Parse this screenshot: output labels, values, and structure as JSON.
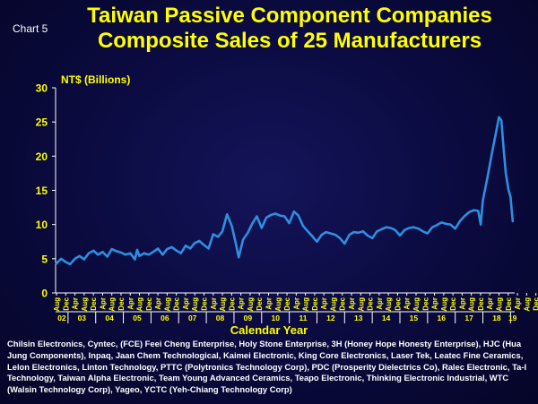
{
  "header": {
    "chart_number": "Chart 5"
  },
  "chart_data": {
    "type": "line",
    "title": "Taiwan Passive Component Companies",
    "subtitle": "Composite Sales of 25 Manufacturers",
    "ylabel": "NT$ (Billions)",
    "xlabel": "Calendar Year",
    "ylim": [
      0,
      30
    ],
    "yticks": [
      "0",
      "5",
      "10",
      "15",
      "20",
      "25",
      "30"
    ],
    "grid": false,
    "color": "#2e8fe0",
    "month_ticks": [
      "Aug",
      "Dec",
      "Apr",
      "Aug",
      "Dec",
      "Apr",
      "Aug",
      "Dec",
      "Apr",
      "Aug",
      "Dec",
      "Apr",
      "Aug",
      "Dec",
      "Apr",
      "Aug",
      "Dec",
      "Apr",
      "Aug",
      "Dec",
      "Apr",
      "Aug",
      "Dec",
      "Apr",
      "Aug",
      "Dec",
      "Apr",
      "Aug",
      "Dec",
      "Apr",
      "Aug",
      "Dec",
      "Apr",
      "Aug",
      "Dec",
      "Apr",
      "Aug",
      "Dec",
      "Apr",
      "Aug",
      "Dec",
      "Apr",
      "Aug",
      "Dec",
      "Apr",
      "Aug",
      "Dec",
      "Apr",
      "Aug",
      "Dec",
      "Apr",
      "Aug",
      "Dec"
    ],
    "year_labels": [
      "02",
      "03",
      "04",
      "05",
      "06",
      "07",
      "08",
      "09",
      "10",
      "11",
      "12",
      "13",
      "14",
      "15",
      "16",
      "17",
      "18",
      "19"
    ],
    "x_start": "Aug 2002",
    "x_end": "Jan 2019",
    "points": [
      [
        2002.58,
        4.3
      ],
      [
        2002.75,
        5.0
      ],
      [
        2002.92,
        4.5
      ],
      [
        2003.08,
        4.2
      ],
      [
        2003.25,
        5.0
      ],
      [
        2003.42,
        5.4
      ],
      [
        2003.58,
        4.9
      ],
      [
        2003.75,
        5.8
      ],
      [
        2003.92,
        6.2
      ],
      [
        2004.08,
        5.6
      ],
      [
        2004.25,
        6.0
      ],
      [
        2004.42,
        5.3
      ],
      [
        2004.58,
        6.4
      ],
      [
        2004.75,
        6.1
      ],
      [
        2004.92,
        5.9
      ],
      [
        2005.08,
        5.6
      ],
      [
        2005.25,
        5.8
      ],
      [
        2005.42,
        4.9
      ],
      [
        2005.5,
        6.3
      ],
      [
        2005.58,
        5.4
      ],
      [
        2005.75,
        5.8
      ],
      [
        2005.92,
        5.6
      ],
      [
        2006.08,
        6.0
      ],
      [
        2006.25,
        6.5
      ],
      [
        2006.42,
        5.6
      ],
      [
        2006.58,
        6.4
      ],
      [
        2006.75,
        6.7
      ],
      [
        2006.92,
        6.2
      ],
      [
        2007.08,
        5.8
      ],
      [
        2007.25,
        6.9
      ],
      [
        2007.42,
        6.5
      ],
      [
        2007.58,
        7.3
      ],
      [
        2007.75,
        7.6
      ],
      [
        2007.92,
        7.0
      ],
      [
        2008.08,
        6.5
      ],
      [
        2008.25,
        8.6
      ],
      [
        2008.42,
        8.2
      ],
      [
        2008.58,
        9.0
      ],
      [
        2008.75,
        11.5
      ],
      [
        2008.92,
        9.8
      ],
      [
        2009.08,
        7.0
      ],
      [
        2009.17,
        5.2
      ],
      [
        2009.33,
        7.8
      ],
      [
        2009.5,
        8.8
      ],
      [
        2009.67,
        10.2
      ],
      [
        2009.83,
        11.2
      ],
      [
        2010.0,
        9.5
      ],
      [
        2010.17,
        11.0
      ],
      [
        2010.33,
        11.4
      ],
      [
        2010.5,
        11.6
      ],
      [
        2010.67,
        11.3
      ],
      [
        2010.83,
        11.2
      ],
      [
        2011.0,
        10.2
      ],
      [
        2011.17,
        11.9
      ],
      [
        2011.33,
        11.3
      ],
      [
        2011.5,
        9.8
      ],
      [
        2011.67,
        9.0
      ],
      [
        2011.83,
        8.3
      ],
      [
        2012.0,
        7.5
      ],
      [
        2012.17,
        8.5
      ],
      [
        2012.33,
        8.9
      ],
      [
        2012.5,
        8.7
      ],
      [
        2012.67,
        8.5
      ],
      [
        2012.83,
        8.0
      ],
      [
        2013.0,
        7.2
      ],
      [
        2013.17,
        8.5
      ],
      [
        2013.33,
        8.9
      ],
      [
        2013.5,
        8.8
      ],
      [
        2013.67,
        9.0
      ],
      [
        2013.83,
        8.4
      ],
      [
        2014.0,
        8.0
      ],
      [
        2014.17,
        9.0
      ],
      [
        2014.33,
        9.3
      ],
      [
        2014.5,
        9.6
      ],
      [
        2014.67,
        9.5
      ],
      [
        2014.83,
        9.2
      ],
      [
        2015.0,
        8.4
      ],
      [
        2015.17,
        9.2
      ],
      [
        2015.33,
        9.5
      ],
      [
        2015.5,
        9.6
      ],
      [
        2015.67,
        9.4
      ],
      [
        2015.83,
        9.0
      ],
      [
        2016.0,
        8.7
      ],
      [
        2016.17,
        9.6
      ],
      [
        2016.33,
        9.9
      ],
      [
        2016.5,
        10.3
      ],
      [
        2016.67,
        10.1
      ],
      [
        2016.83,
        10.0
      ],
      [
        2017.0,
        9.4
      ],
      [
        2017.17,
        10.5
      ],
      [
        2017.33,
        11.2
      ],
      [
        2017.5,
        11.8
      ],
      [
        2017.67,
        12.1
      ],
      [
        2017.83,
        12.0
      ],
      [
        2017.92,
        10.0
      ],
      [
        2018.0,
        13.5
      ],
      [
        2018.17,
        17.0
      ],
      [
        2018.33,
        20.5
      ],
      [
        2018.5,
        24.0
      ],
      [
        2018.58,
        25.7
      ],
      [
        2018.67,
        25.2
      ],
      [
        2018.75,
        21.0
      ],
      [
        2018.83,
        17.5
      ],
      [
        2018.92,
        15.2
      ],
      [
        2019.0,
        14.0
      ],
      [
        2019.08,
        10.5
      ]
    ]
  },
  "footnote": "Chilsin Electronics, Cyntec, (FCE) Feei Cheng Enterprise, Holy Stone Enterprise, 3H (Honey Hope Honesty Enterprise), HJC (Hua Jung Components), Inpaq, Jaan Chem Technological, Kaimei Electronic, King Core Electronics, Laser Tek, Leatec Fine Ceramics, Lelon Electronics, Linton Technology, PTTC (Polytronics Technology Corp), PDC (Prosperity Dielectrics Co), Ralec Electronic, Ta-I Technology, Taiwan Alpha Electronic, Team Young Advanced Ceramics, Teapo Electronic, Thinking Electronic Industrial, WTC (Walsin Technology Corp), Yageo, YCTC (Yeh-Chiang Technology Corp)"
}
